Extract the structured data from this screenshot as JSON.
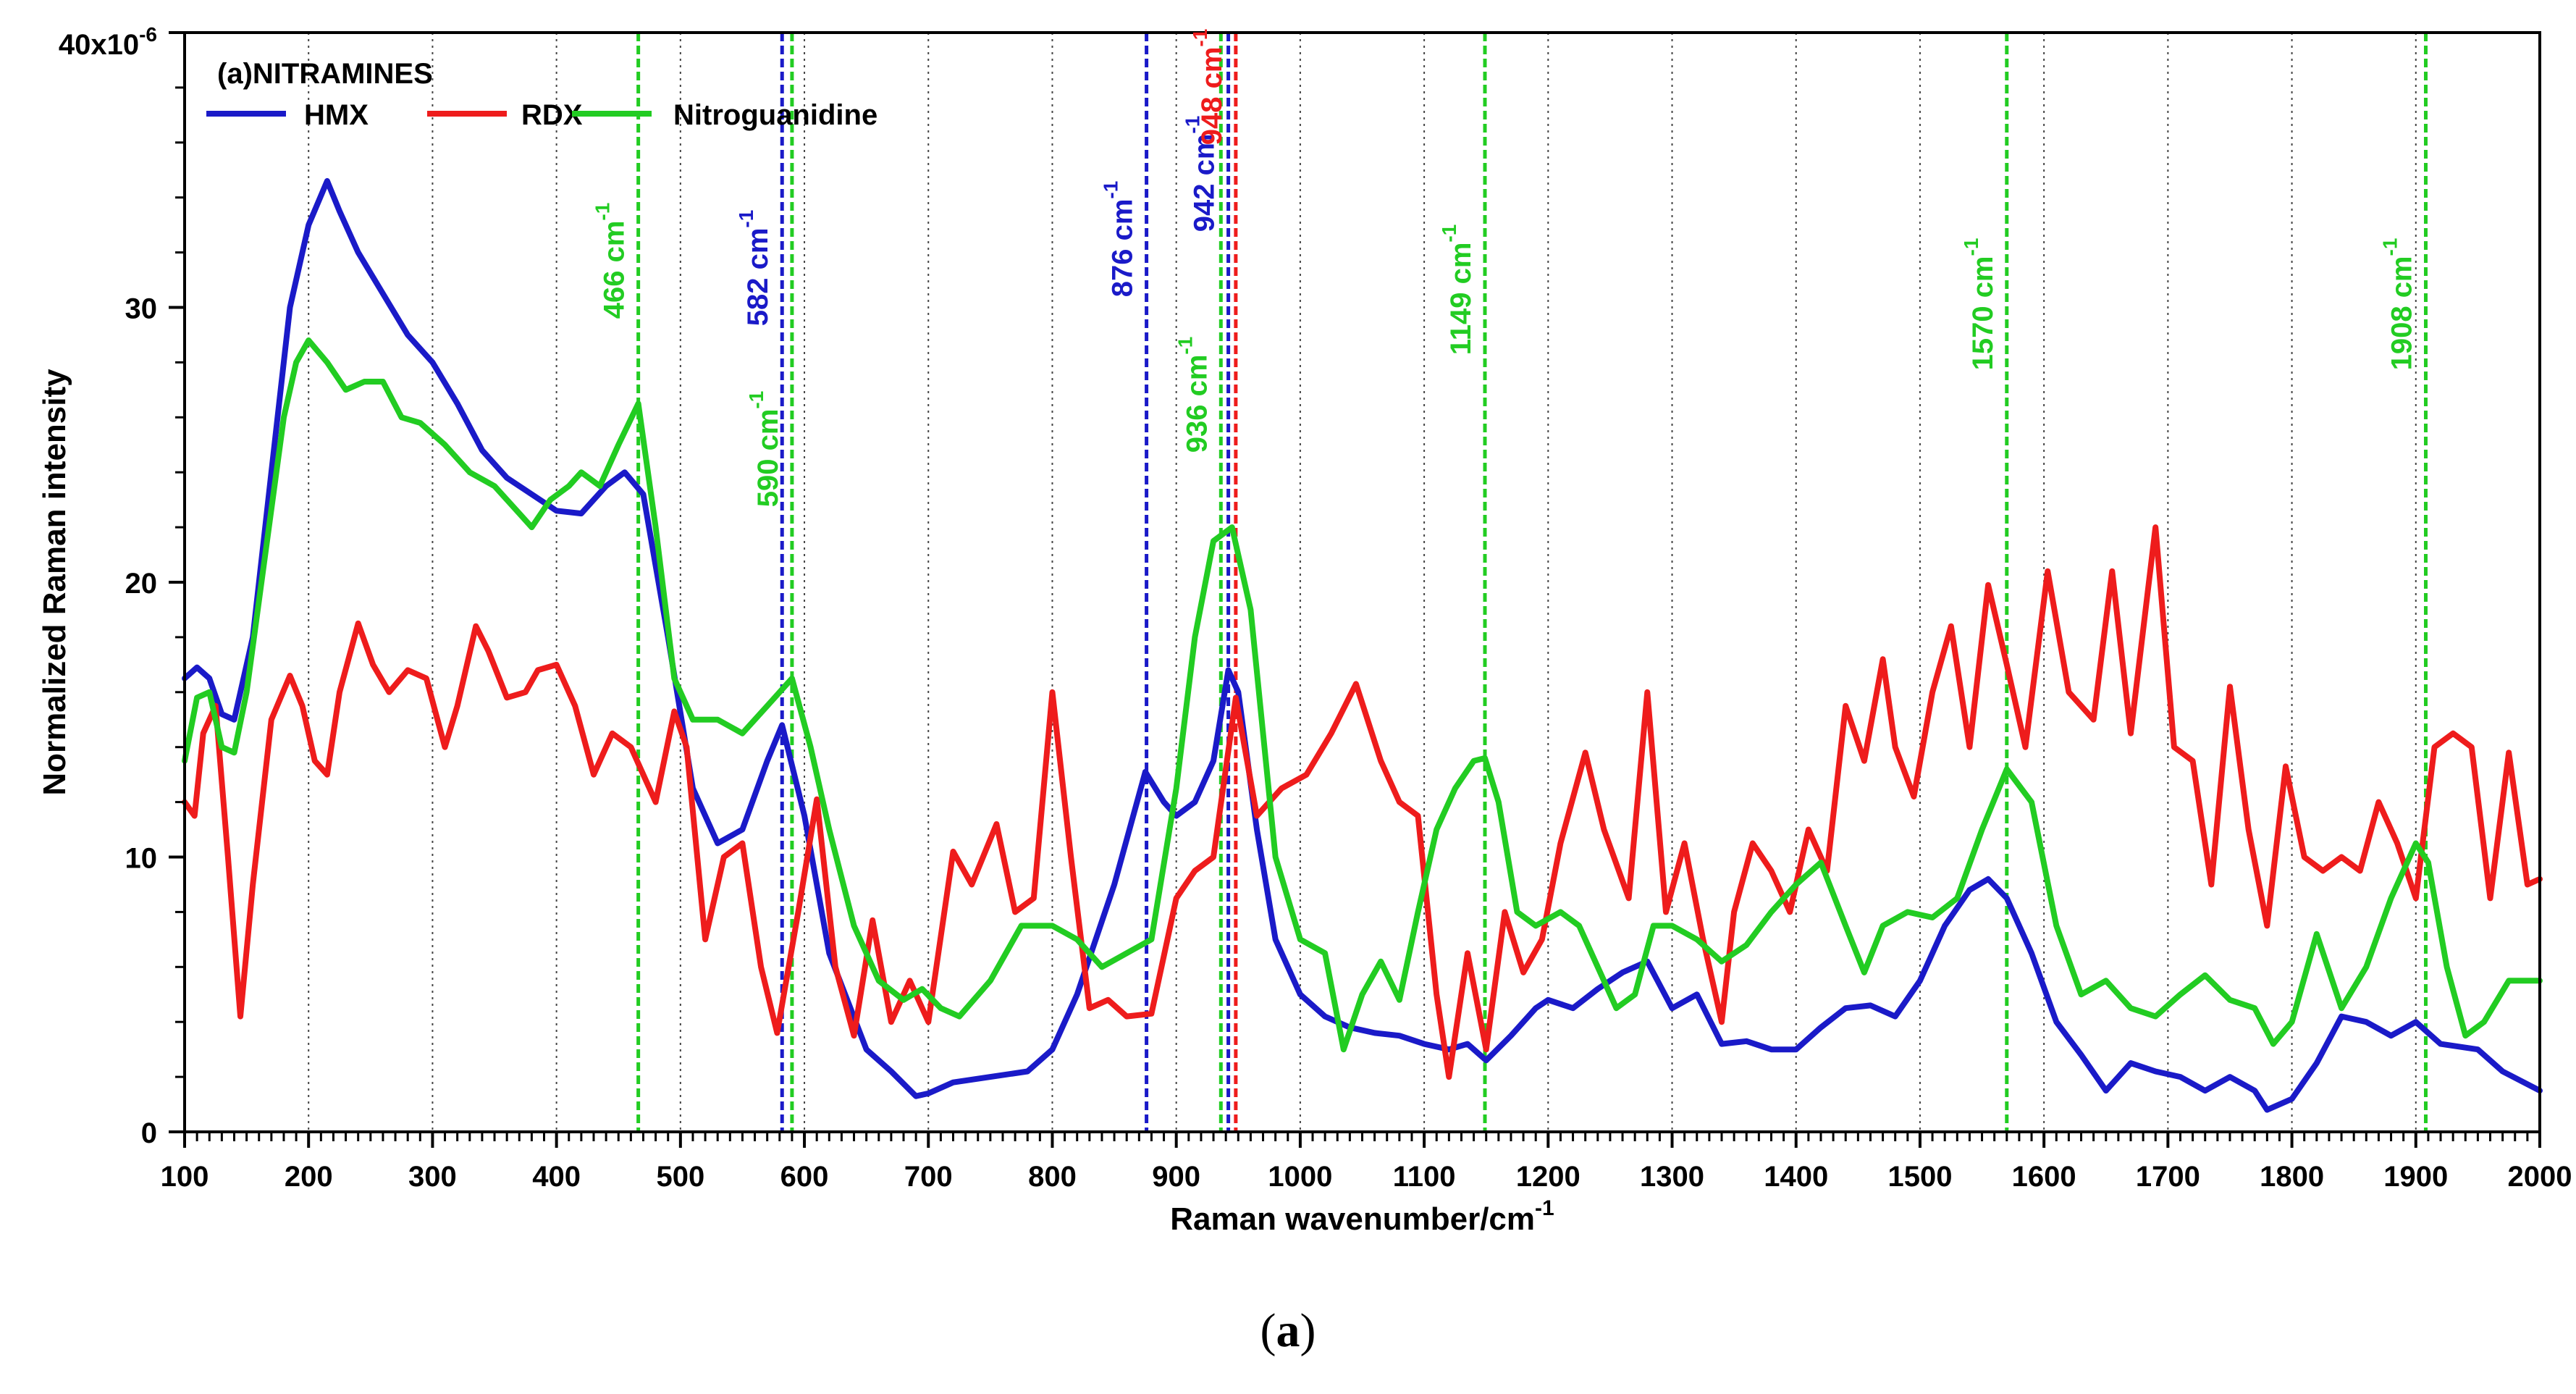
{
  "caption": {
    "open": "(",
    "letter": "a",
    "close": ")"
  },
  "chart_data": {
    "type": "line",
    "panel_label": "(a)NITRAMINES",
    "xlabel": "Raman wavenumber/cm",
    "xlabel_sup": "-1",
    "ylabel": "Normalized Raman intensity",
    "y_top_label": "40x10",
    "y_top_sup": "-6",
    "xlim": [
      100,
      2000
    ],
    "ylim": [
      0,
      40
    ],
    "x_ticks": [
      100,
      200,
      300,
      400,
      500,
      600,
      700,
      800,
      900,
      1000,
      1100,
      1200,
      1300,
      1400,
      1500,
      1600,
      1700,
      1800,
      1900,
      2000
    ],
    "y_ticks": [
      0,
      10,
      20,
      30
    ],
    "grid": "vertical dotted",
    "legend_position": "top-left",
    "series": [
      {
        "name": "HMX",
        "color": "#1a1ac8",
        "x": [
          100,
          110,
          120,
          130,
          140,
          155,
          170,
          185,
          200,
          215,
          225,
          240,
          260,
          280,
          300,
          320,
          340,
          360,
          380,
          400,
          420,
          440,
          455,
          470,
          490,
          510,
          530,
          550,
          570,
          582,
          600,
          620,
          650,
          670,
          690,
          700,
          720,
          750,
          780,
          800,
          820,
          850,
          875,
          890,
          900,
          915,
          930,
          942,
          950,
          965,
          980,
          1000,
          1020,
          1040,
          1060,
          1080,
          1100,
          1120,
          1135,
          1150,
          1170,
          1190,
          1200,
          1220,
          1240,
          1260,
          1280,
          1300,
          1320,
          1340,
          1360,
          1380,
          1400,
          1420,
          1440,
          1460,
          1480,
          1500,
          1520,
          1540,
          1555,
          1570,
          1590,
          1610,
          1630,
          1650,
          1670,
          1690,
          1710,
          1730,
          1750,
          1770,
          1780,
          1800,
          1820,
          1840,
          1860,
          1880,
          1900,
          1920,
          1950,
          1970,
          2000
        ],
        "y": [
          16.5,
          16.9,
          16.5,
          15.2,
          15.0,
          18.0,
          24.0,
          30.0,
          33.0,
          34.6,
          33.5,
          32.0,
          30.5,
          29.0,
          28.0,
          26.5,
          24.8,
          23.8,
          23.2,
          22.6,
          22.5,
          23.5,
          24.0,
          23.2,
          18.0,
          12.5,
          10.5,
          11.0,
          13.5,
          14.8,
          11.5,
          6.5,
          3.0,
          2.2,
          1.3,
          1.4,
          1.8,
          2.0,
          2.2,
          3.0,
          5.0,
          9.0,
          13.1,
          12.0,
          11.5,
          12.0,
          13.5,
          16.8,
          16.0,
          11.0,
          7.0,
          5.0,
          4.2,
          3.8,
          3.6,
          3.5,
          3.2,
          3.0,
          3.2,
          2.6,
          3.5,
          4.5,
          4.8,
          4.5,
          5.2,
          5.8,
          6.2,
          4.5,
          5.0,
          3.2,
          3.3,
          3.0,
          3.0,
          3.8,
          4.5,
          4.6,
          4.2,
          5.5,
          7.5,
          8.8,
          9.2,
          8.5,
          6.5,
          4.0,
          2.8,
          1.5,
          2.5,
          2.2,
          2.0,
          1.5,
          2.0,
          1.5,
          0.8,
          1.2,
          2.5,
          4.2,
          4.0,
          3.5,
          4.0,
          3.2,
          3.0,
          2.2,
          1.5
        ]
      },
      {
        "name": "RDX",
        "color": "#ee1c1c",
        "x": [
          100,
          108,
          115,
          125,
          135,
          145,
          155,
          170,
          185,
          195,
          205,
          215,
          225,
          240,
          252,
          265,
          280,
          295,
          310,
          320,
          335,
          345,
          360,
          375,
          385,
          400,
          415,
          430,
          445,
          460,
          480,
          495,
          505,
          520,
          535,
          550,
          565,
          578,
          595,
          610,
          625,
          640,
          655,
          670,
          685,
          700,
          720,
          735,
          755,
          770,
          785,
          800,
          815,
          830,
          845,
          860,
          880,
          900,
          915,
          930,
          948,
          965,
          985,
          1005,
          1025,
          1045,
          1065,
          1080,
          1095,
          1110,
          1120,
          1135,
          1150,
          1165,
          1180,
          1195,
          1210,
          1230,
          1245,
          1265,
          1280,
          1295,
          1310,
          1325,
          1340,
          1350,
          1365,
          1380,
          1395,
          1410,
          1425,
          1440,
          1455,
          1470,
          1480,
          1495,
          1510,
          1525,
          1540,
          1555,
          1570,
          1585,
          1603,
          1620,
          1640,
          1655,
          1670,
          1690,
          1705,
          1720,
          1735,
          1750,
          1765,
          1780,
          1795,
          1810,
          1825,
          1840,
          1855,
          1870,
          1885,
          1900,
          1915,
          1930,
          1945,
          1960,
          1975,
          1990,
          2000
        ],
        "y": [
          12.0,
          11.5,
          14.5,
          15.5,
          10.0,
          4.2,
          9.0,
          15.0,
          16.6,
          15.5,
          13.5,
          13.0,
          16.0,
          18.5,
          17.0,
          16.0,
          16.8,
          16.5,
          14.0,
          15.5,
          18.4,
          17.5,
          15.8,
          16.0,
          16.8,
          17.0,
          15.5,
          13.0,
          14.5,
          14.0,
          12.0,
          15.3,
          14.0,
          7.0,
          10.0,
          10.5,
          6.0,
          3.6,
          8.0,
          12.1,
          6.0,
          3.5,
          7.7,
          4.0,
          5.5,
          4.0,
          10.2,
          9.0,
          11.2,
          8.0,
          8.5,
          16.0,
          10.0,
          4.5,
          4.8,
          4.2,
          4.3,
          8.5,
          9.5,
          10.0,
          15.8,
          11.5,
          12.5,
          13.0,
          14.5,
          16.3,
          13.5,
          12.0,
          11.5,
          5.0,
          2.0,
          6.5,
          3.0,
          8.0,
          5.8,
          7.0,
          10.5,
          13.8,
          11.0,
          8.5,
          16.0,
          8.0,
          10.5,
          7.0,
          4.0,
          8.0,
          10.5,
          9.5,
          8.0,
          11.0,
          9.5,
          15.5,
          13.5,
          17.2,
          14.0,
          12.2,
          16.0,
          18.4,
          14.0,
          19.9,
          17.0,
          14.0,
          20.4,
          16.0,
          15.0,
          20.4,
          14.5,
          22.0,
          14.0,
          13.5,
          9.0,
          16.2,
          11.0,
          7.5,
          13.3,
          10.0,
          9.5,
          10.0,
          9.5,
          12.0,
          10.5,
          8.5,
          14.0,
          14.5,
          14.0,
          8.5,
          13.8,
          9.0,
          9.2
        ]
      },
      {
        "name": "Nitroguanidine",
        "color": "#22cc22",
        "x": [
          100,
          110,
          120,
          130,
          140,
          150,
          165,
          180,
          190,
          200,
          215,
          230,
          245,
          260,
          275,
          290,
          310,
          330,
          350,
          370,
          380,
          395,
          410,
          420,
          435,
          450,
          466,
          480,
          495,
          510,
          530,
          550,
          570,
          590,
          605,
          620,
          640,
          660,
          680,
          695,
          710,
          725,
          750,
          775,
          800,
          820,
          840,
          860,
          880,
          900,
          915,
          930,
          945,
          960,
          980,
          1000,
          1020,
          1035,
          1050,
          1065,
          1080,
          1095,
          1110,
          1125,
          1140,
          1149,
          1160,
          1175,
          1190,
          1210,
          1225,
          1240,
          1255,
          1270,
          1285,
          1300,
          1320,
          1340,
          1360,
          1380,
          1400,
          1420,
          1440,
          1455,
          1470,
          1490,
          1510,
          1530,
          1550,
          1570,
          1590,
          1610,
          1630,
          1650,
          1670,
          1690,
          1710,
          1730,
          1750,
          1770,
          1785,
          1800,
          1820,
          1840,
          1860,
          1880,
          1900,
          1910,
          1925,
          1940,
          1955,
          1975,
          2000
        ],
        "y": [
          13.5,
          15.8,
          16.0,
          14.0,
          13.8,
          16.0,
          21.0,
          26.0,
          28.0,
          28.8,
          28.0,
          27.0,
          27.3,
          27.3,
          26.0,
          25.8,
          25.0,
          24.0,
          23.5,
          22.5,
          22.0,
          23.0,
          23.5,
          24.0,
          23.5,
          25.0,
          26.5,
          22.0,
          16.5,
          15.0,
          15.0,
          14.5,
          15.5,
          16.5,
          14.0,
          11.0,
          7.5,
          5.5,
          4.8,
          5.2,
          4.5,
          4.2,
          5.5,
          7.5,
          7.5,
          7.0,
          6.0,
          6.5,
          7.0,
          12.5,
          18.0,
          21.5,
          22.0,
          19.0,
          10.0,
          7.0,
          6.5,
          3.0,
          5.0,
          6.2,
          4.8,
          8.0,
          11.0,
          12.5,
          13.5,
          13.6,
          12.0,
          8.0,
          7.5,
          8.0,
          7.5,
          6.0,
          4.5,
          5.0,
          7.5,
          7.5,
          7.0,
          6.2,
          6.8,
          8.0,
          9.0,
          9.8,
          7.5,
          5.8,
          7.5,
          8.0,
          7.8,
          8.5,
          11.0,
          13.2,
          12.0,
          7.5,
          5.0,
          5.5,
          4.5,
          4.2,
          5.0,
          5.7,
          4.8,
          4.5,
          3.2,
          4.0,
          7.2,
          4.5,
          6.0,
          8.5,
          10.5,
          9.8,
          6.0,
          3.5,
          4.0,
          5.5,
          5.5
        ]
      }
    ],
    "annotations": [
      {
        "label": "466 cm",
        "sup": "-1",
        "x": 466,
        "color": "#22cc22"
      },
      {
        "label": "582 cm",
        "sup": "-1",
        "x": 582,
        "color": "#1a1ac8"
      },
      {
        "label": "590 cm",
        "sup": "-1",
        "x": 590,
        "color": "#22cc22"
      },
      {
        "label": "876 cm",
        "sup": "-1",
        "x": 876,
        "color": "#1a1ac8"
      },
      {
        "label": "936 cm",
        "sup": "-1",
        "x": 936,
        "color": "#22cc22"
      },
      {
        "label": "942 cm",
        "sup": "-1",
        "x": 942,
        "color": "#1a1ac8"
      },
      {
        "label": "948 cm",
        "sup": "-1",
        "x": 948,
        "color": "#ee1c1c"
      },
      {
        "label": "1149 cm",
        "sup": "-1",
        "x": 1149,
        "color": "#22cc22"
      },
      {
        "label": "1570 cm",
        "sup": "-1",
        "x": 1570,
        "color": "#22cc22"
      },
      {
        "label": "1908 cm",
        "sup": "-1",
        "x": 1908,
        "color": "#22cc22"
      }
    ]
  }
}
